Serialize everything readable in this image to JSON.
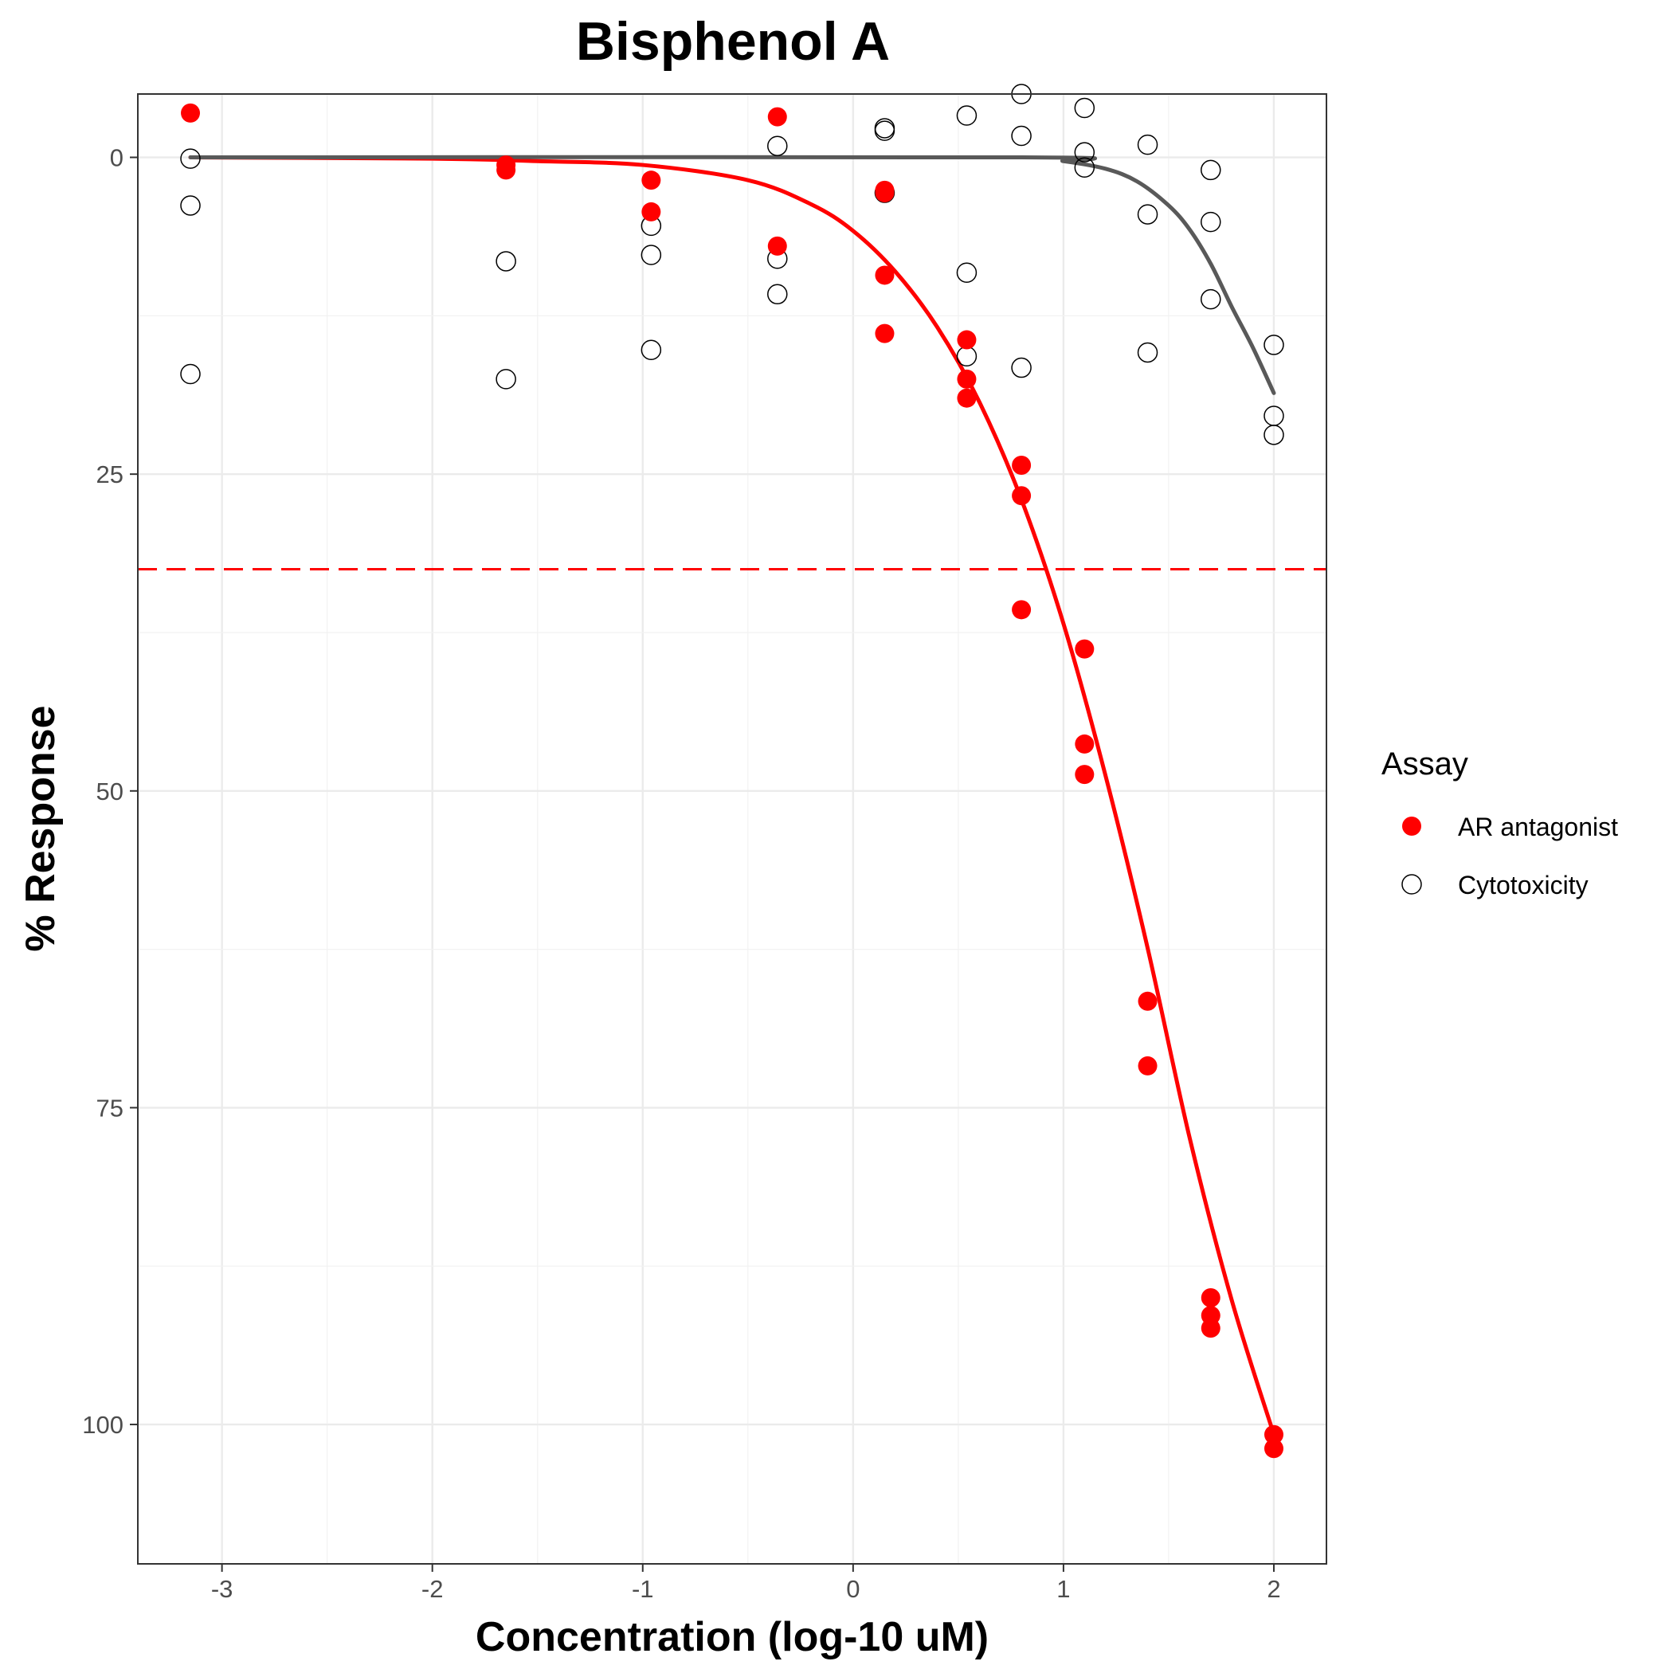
{
  "chart_data": {
    "type": "scatter",
    "title": "Bisphenol A",
    "xlabel": "Concentration (log-10 uM)",
    "ylabel": "% Response",
    "xlim": [
      -3.4,
      2.25
    ],
    "ylim": [
      -5,
      111
    ],
    "y_reversed": true,
    "x_ticks": [
      "-3",
      "-2",
      "-1",
      "0",
      "1",
      "2"
    ],
    "x_tick_values": [
      -3,
      -2,
      -1,
      0,
      1,
      2
    ],
    "y_ticks": [
      "0",
      "25",
      "50",
      "75",
      "100"
    ],
    "y_tick_values": [
      0,
      25,
      50,
      75,
      100
    ],
    "grid": true,
    "legend_title": "Assay",
    "legend_position": "right",
    "threshold_line": {
      "y": 32.5,
      "color": "#ff0000",
      "style": "dashed"
    },
    "series": [
      {
        "name": "AR antagonist",
        "marker": "filled-circle",
        "color": "#ff0000",
        "points": [
          {
            "x": -3.15,
            "y": -3.5
          },
          {
            "x": -1.65,
            "y": 0.6
          },
          {
            "x": -1.65,
            "y": 1.0
          },
          {
            "x": -0.96,
            "y": 1.8
          },
          {
            "x": -0.96,
            "y": 4.3
          },
          {
            "x": -0.36,
            "y": -3.2
          },
          {
            "x": -0.36,
            "y": 7.0
          },
          {
            "x": 0.15,
            "y": 2.6
          },
          {
            "x": 0.15,
            "y": 2.8
          },
          {
            "x": 0.15,
            "y": 9.3
          },
          {
            "x": 0.15,
            "y": 13.9
          },
          {
            "x": 0.54,
            "y": 14.4
          },
          {
            "x": 0.54,
            "y": 17.5
          },
          {
            "x": 0.54,
            "y": 19.0
          },
          {
            "x": 0.8,
            "y": 24.3
          },
          {
            "x": 0.8,
            "y": 26.7
          },
          {
            "x": 0.8,
            "y": 35.7
          },
          {
            "x": 1.1,
            "y": 38.8
          },
          {
            "x": 1.1,
            "y": 46.3
          },
          {
            "x": 1.1,
            "y": 48.7
          },
          {
            "x": 1.4,
            "y": 66.6
          },
          {
            "x": 1.4,
            "y": 71.7
          },
          {
            "x": 1.7,
            "y": 90.0
          },
          {
            "x": 1.7,
            "y": 91.4
          },
          {
            "x": 1.7,
            "y": 92.4
          },
          {
            "x": 2.0,
            "y": 100.8
          },
          {
            "x": 2.0,
            "y": 101.9
          }
        ],
        "curve": [
          [
            -3.15,
            0.0
          ],
          [
            -2.0,
            0.1
          ],
          [
            -1.5,
            0.3
          ],
          [
            -1.0,
            0.6
          ],
          [
            -0.5,
            1.8
          ],
          [
            -0.2,
            3.7
          ],
          [
            0.0,
            5.8
          ],
          [
            0.2,
            9.0
          ],
          [
            0.4,
            13.4
          ],
          [
            0.6,
            19.3
          ],
          [
            0.8,
            27.0
          ],
          [
            1.0,
            36.8
          ],
          [
            1.2,
            48.8
          ],
          [
            1.4,
            62.4
          ],
          [
            1.6,
            77.4
          ],
          [
            1.8,
            90.2
          ],
          [
            2.0,
            100.8
          ]
        ]
      },
      {
        "name": "Cytotoxicity",
        "marker": "open-circle",
        "color": "#000000",
        "points": [
          {
            "x": -3.15,
            "y": 0.1
          },
          {
            "x": -3.15,
            "y": 3.8
          },
          {
            "x": -3.15,
            "y": 17.1
          },
          {
            "x": -1.65,
            "y": 8.2
          },
          {
            "x": -1.65,
            "y": 17.5
          },
          {
            "x": -0.96,
            "y": 5.4
          },
          {
            "x": -0.96,
            "y": 7.7
          },
          {
            "x": -0.96,
            "y": 15.2
          },
          {
            "x": -0.36,
            "y": -0.9
          },
          {
            "x": -0.36,
            "y": 8.0
          },
          {
            "x": -0.36,
            "y": 10.8
          },
          {
            "x": 0.15,
            "y": -2.3
          },
          {
            "x": 0.15,
            "y": -2.1
          },
          {
            "x": 0.15,
            "y": 2.8
          },
          {
            "x": 0.54,
            "y": -3.3
          },
          {
            "x": 0.54,
            "y": 9.1
          },
          {
            "x": 0.54,
            "y": 15.7
          },
          {
            "x": 0.8,
            "y": -5.0
          },
          {
            "x": 0.8,
            "y": -1.7
          },
          {
            "x": 0.8,
            "y": 16.6
          },
          {
            "x": 1.1,
            "y": -3.9
          },
          {
            "x": 1.1,
            "y": -0.4
          },
          {
            "x": 1.1,
            "y": 0.8
          },
          {
            "x": 1.4,
            "y": -1.0
          },
          {
            "x": 1.4,
            "y": 4.5
          },
          {
            "x": 1.4,
            "y": 15.4
          },
          {
            "x": 1.7,
            "y": 1.0
          },
          {
            "x": 1.7,
            "y": 5.1
          },
          {
            "x": 1.7,
            "y": 11.2
          },
          {
            "x": 2.0,
            "y": 14.8
          },
          {
            "x": 2.0,
            "y": 20.4
          },
          {
            "x": 2.0,
            "y": 21.9
          }
        ],
        "curve": [
          [
            -3.15,
            0.0
          ],
          [
            0.8,
            0.0
          ],
          [
            1.0,
            0.3
          ],
          [
            1.2,
            0.9
          ],
          [
            1.35,
            1.9
          ],
          [
            1.5,
            3.8
          ],
          [
            1.6,
            5.7
          ],
          [
            1.7,
            8.4
          ],
          [
            1.8,
            11.8
          ],
          [
            1.9,
            15.0
          ],
          [
            2.0,
            18.6
          ]
        ]
      }
    ]
  }
}
